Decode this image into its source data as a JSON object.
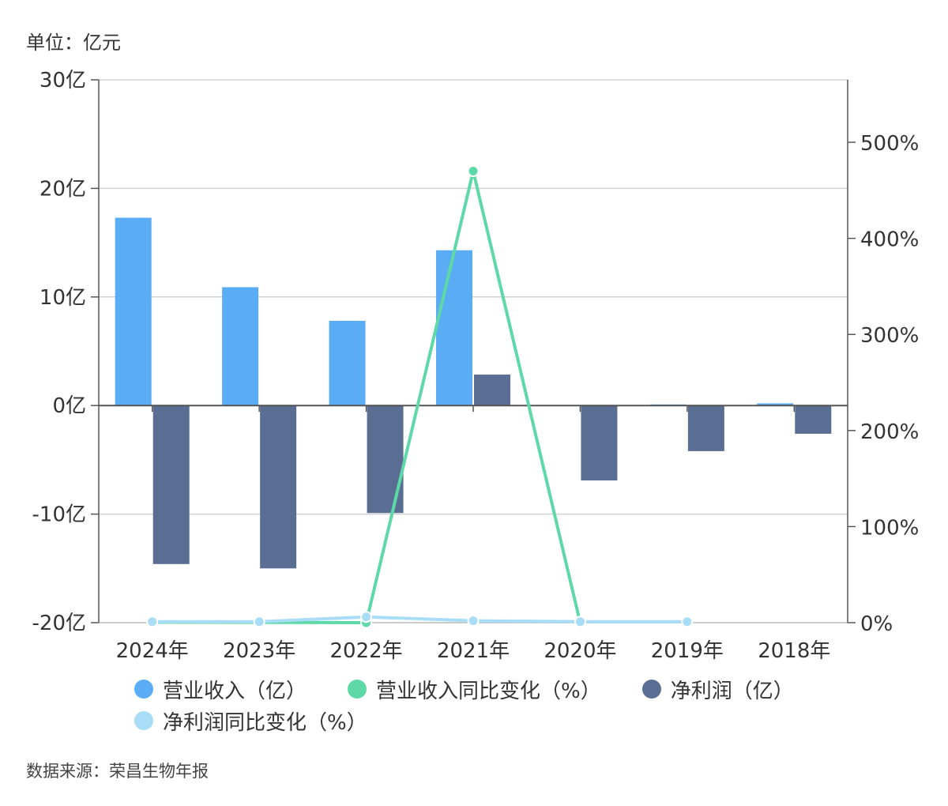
{
  "unit_label": "单位：亿元",
  "source": "数据来源：荣昌生物年报",
  "chart_data": {
    "type": "bar",
    "categories": [
      "2024年",
      "2023年",
      "2022年",
      "2021年",
      "2020年",
      "2019年",
      "2018年"
    ],
    "series": [
      {
        "name": "营业收入（亿）",
        "kind": "bar",
        "axis": "left",
        "color": "#5aadf5",
        "values": [
          17.3,
          10.9,
          7.8,
          14.3,
          0.05,
          0.1,
          0.2
        ]
      },
      {
        "name": "营业收入同比变化（%）",
        "kind": "line",
        "axis": "right",
        "color": "#5fd8a8",
        "values": [
          0.5,
          0.3,
          -1,
          470,
          0,
          null,
          null
        ]
      },
      {
        "name": "净利润（亿）",
        "kind": "bar",
        "axis": "left",
        "color": "#5a6d93",
        "values": [
          -14.6,
          -15.0,
          -9.9,
          2.85,
          -6.9,
          -4.2,
          -2.6
        ]
      },
      {
        "name": "净利润同比变化（%）",
        "kind": "line",
        "axis": "right",
        "color": "#a8dcf7",
        "values": [
          1,
          1,
          6,
          2,
          1,
          1,
          null
        ]
      }
    ],
    "left_axis": {
      "ylim": [
        -20,
        30
      ],
      "ticks": [
        -20,
        -10,
        0,
        10,
        20,
        30
      ],
      "tick_labels": [
        "-20亿",
        "-10亿",
        "0亿",
        "10亿",
        "20亿",
        "30亿"
      ]
    },
    "right_axis": {
      "ylim": [
        0,
        565
      ],
      "ticks": [
        0,
        100,
        200,
        300,
        400,
        500
      ],
      "tick_labels": [
        "0%",
        "100%",
        "200%",
        "300%",
        "400%",
        "500%"
      ]
    },
    "grid": true,
    "legend_position": "bottom"
  }
}
